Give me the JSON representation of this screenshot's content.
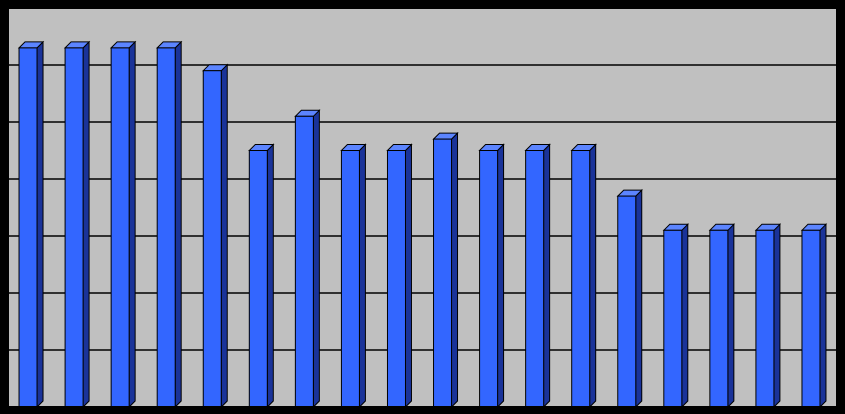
{
  "chart_data": {
    "type": "bar",
    "values": [
      6.3,
      6.3,
      6.3,
      6.3,
      5.9,
      4.5,
      5.1,
      4.5,
      4.5,
      4.7,
      4.5,
      4.5,
      4.5,
      3.7,
      3.1,
      3.1,
      3.1,
      3.1
    ],
    "color": "#3366ff",
    "ylim": [
      0,
      7
    ],
    "yticks": [
      0,
      1,
      2,
      3,
      4,
      5,
      6,
      7
    ],
    "grid": true
  }
}
